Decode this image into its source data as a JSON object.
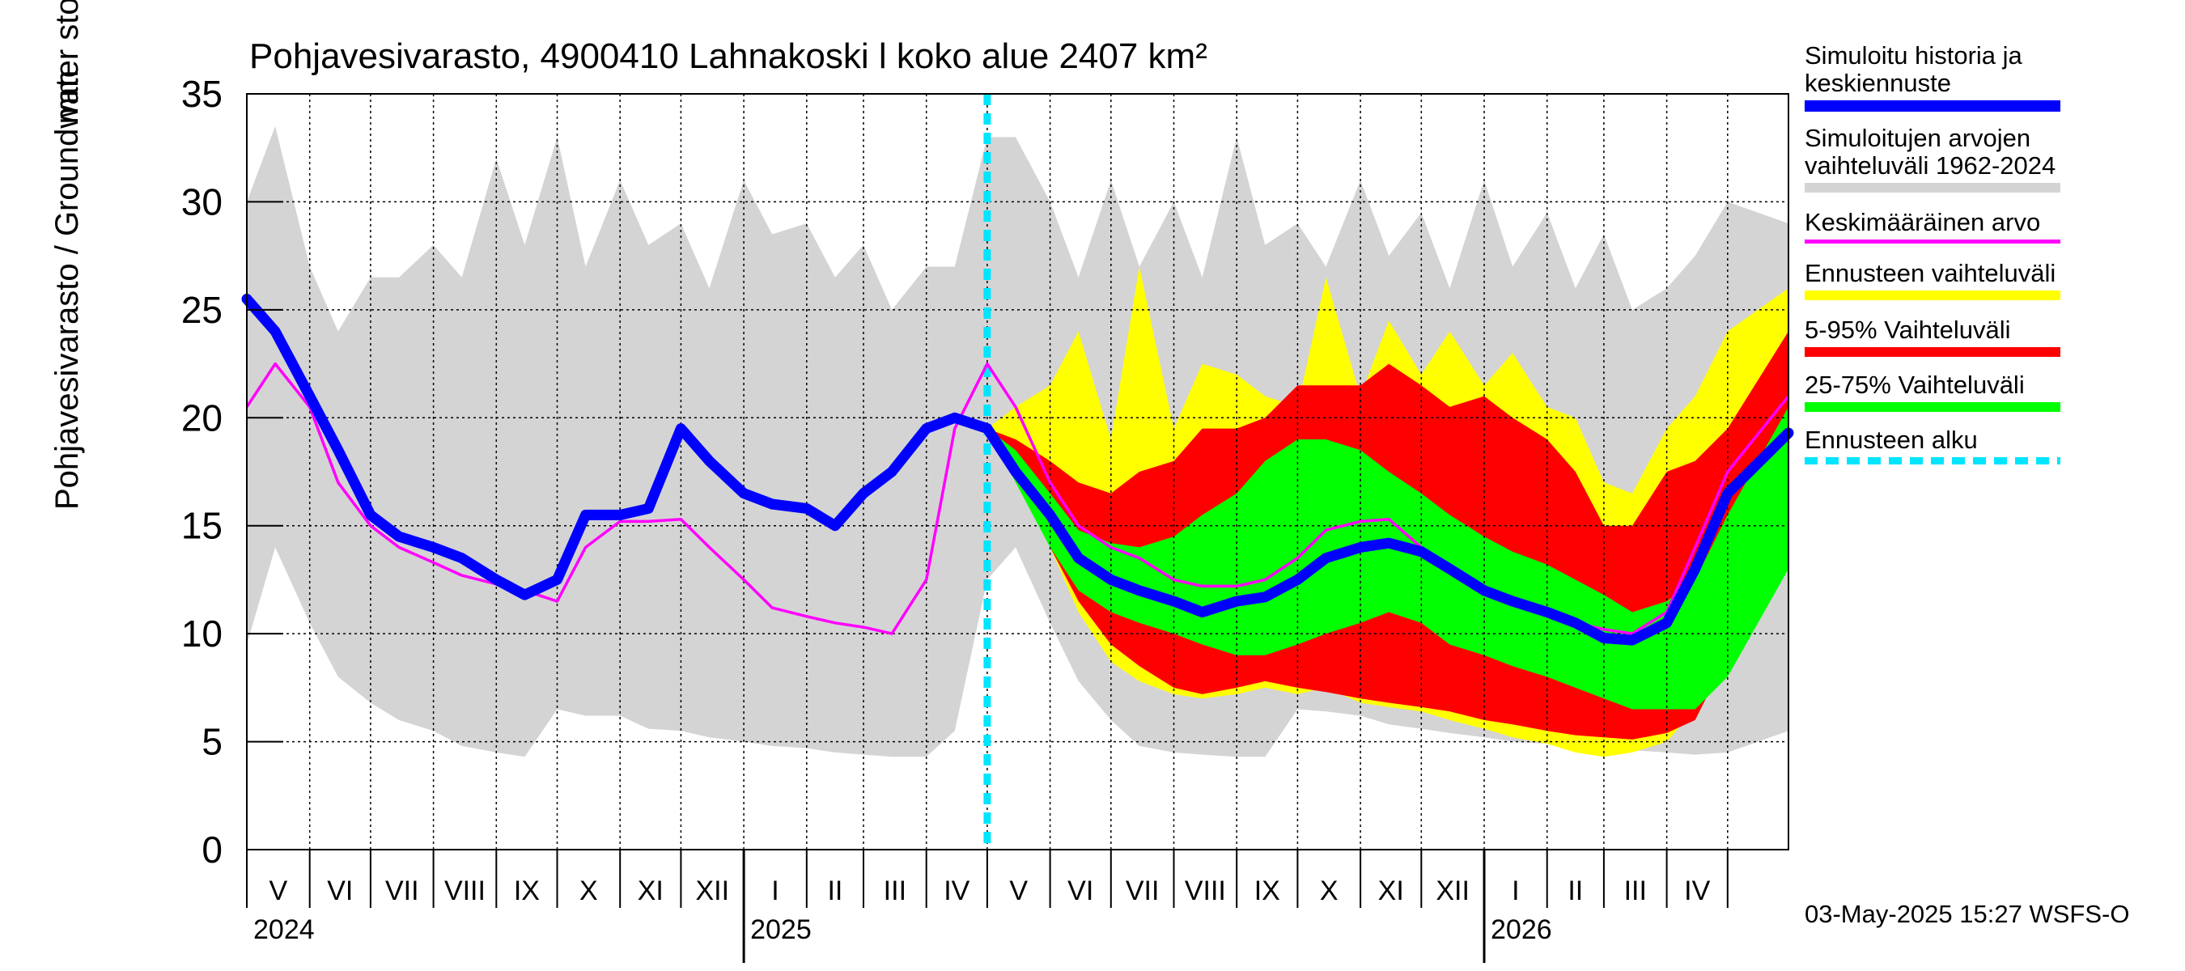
{
  "chart_data": {
    "type": "area",
    "title": "Pohjavesivarasto, 4900410 Lahnakoski l koko alue 2407 km²",
    "ylabel": "Pohjavesivarasto / Groundwater storage",
    "yunit": "mm",
    "ylim": [
      0,
      35
    ],
    "yticks": [
      0,
      5,
      10,
      15,
      20,
      25,
      30,
      35
    ],
    "xlim": [
      "2024-05-01",
      "2026-05-31"
    ],
    "grid": true,
    "legend_position": "right",
    "x": [
      "2024-05-01",
      "2024-05-15",
      "2024-06-01",
      "2024-06-15",
      "2024-07-01",
      "2024-07-15",
      "2024-08-01",
      "2024-08-15",
      "2024-09-01",
      "2024-09-15",
      "2024-10-01",
      "2024-10-15",
      "2024-11-01",
      "2024-11-15",
      "2024-12-01",
      "2024-12-15",
      "2025-01-01",
      "2025-01-15",
      "2025-02-01",
      "2025-02-15",
      "2025-03-01",
      "2025-03-15",
      "2025-04-01",
      "2025-04-15",
      "2025-05-01",
      "2025-05-15",
      "2025-06-01",
      "2025-06-15",
      "2025-07-01",
      "2025-07-15",
      "2025-08-01",
      "2025-08-15",
      "2025-09-01",
      "2025-09-15",
      "2025-10-01",
      "2025-10-15",
      "2025-11-01",
      "2025-11-15",
      "2025-12-01",
      "2025-12-15",
      "2026-01-01",
      "2026-01-15",
      "2026-02-01",
      "2026-02-15",
      "2026-03-01",
      "2026-03-15",
      "2026-04-01",
      "2026-04-15",
      "2026-05-01",
      "2026-05-31"
    ],
    "forecast_start": "2025-05-01",
    "history_end_index": 24,
    "bands": {
      "history_range": {
        "upper": [
          30,
          33.5,
          27,
          24,
          26.5,
          26.5,
          28,
          26.5,
          32,
          28,
          33,
          27,
          31,
          28,
          29,
          26,
          31,
          28.5,
          29,
          26.5,
          28,
          25,
          27,
          27,
          33,
          33,
          30,
          26.5,
          31,
          27,
          30,
          26.5,
          33,
          28,
          29,
          27,
          31,
          27.5,
          29.5,
          26,
          31,
          27,
          29.5,
          26,
          28.5,
          25,
          26,
          27.5,
          30,
          29
        ],
        "lower": [
          9.5,
          14,
          10.5,
          8,
          6.8,
          6,
          5.5,
          4.8,
          4.5,
          4.3,
          6.5,
          6.2,
          6.2,
          5.6,
          5.5,
          5.2,
          5,
          4.8,
          4.7,
          4.5,
          4.4,
          4.3,
          4.3,
          5.5,
          12.5,
          14,
          10.5,
          7.8,
          6,
          4.8,
          4.5,
          4.4,
          4.3,
          4.3,
          6.5,
          6.4,
          6.2,
          5.8,
          5.6,
          5.4,
          5.2,
          5,
          4.9,
          4.8,
          4.7,
          4.6,
          4.5,
          4.4,
          4.5,
          5.5
        ]
      },
      "forecast_range": {
        "x_start_index": 24,
        "upper": [
          19.5,
          20.5,
          21.5,
          24,
          19,
          27,
          19.5,
          22.5,
          22,
          21,
          20.5,
          26.5,
          21,
          24.5,
          22,
          24,
          21.5,
          23,
          20.5,
          20,
          17,
          16.5,
          19.5,
          21,
          24,
          26
        ],
        "lower": [
          19.5,
          17.5,
          14,
          11,
          8.7,
          7.8,
          7.2,
          7,
          7.2,
          7.5,
          7.2,
          7.5,
          6.8,
          6.6,
          6.4,
          6,
          5.6,
          5.2,
          4.9,
          4.5,
          4.3,
          4.5,
          5,
          6.5,
          10,
          15
        ]
      },
      "p5_95": {
        "x_start_index": 24,
        "upper": [
          19.5,
          19,
          18,
          17,
          16.5,
          17.5,
          18,
          19.5,
          19.5,
          20,
          21.5,
          21.5,
          21.5,
          22.5,
          21.5,
          20.5,
          21,
          20,
          19,
          17.5,
          15,
          15,
          17.5,
          18,
          19.5,
          24
        ],
        "lower": [
          19.5,
          17.5,
          14,
          11.5,
          9.5,
          8.5,
          7.5,
          7.2,
          7.5,
          7.8,
          7.5,
          7.3,
          7,
          6.8,
          6.6,
          6.4,
          6,
          5.8,
          5.5,
          5.3,
          5.2,
          5.1,
          5.4,
          6,
          9,
          14
        ]
      },
      "p25_75": {
        "x_start_index": 24,
        "upper": [
          19.5,
          18.5,
          16.5,
          14.8,
          14.2,
          14,
          14.5,
          15.5,
          16.5,
          18,
          19,
          19,
          18.5,
          17.5,
          16.5,
          15.5,
          14.5,
          13.8,
          13.2,
          12.5,
          11.8,
          11,
          11.5,
          12.5,
          15.5,
          20.5
        ],
        "lower": [
          19.5,
          17,
          14,
          12,
          11,
          10.5,
          10,
          9.5,
          9,
          9,
          9.5,
          10,
          10.5,
          11,
          10.5,
          9.5,
          9,
          8.5,
          8,
          7.5,
          7,
          6.5,
          6.5,
          6.5,
          8,
          13
        ]
      }
    },
    "series": [
      {
        "name": "Simuloitu historia ja keskiennuste",
        "color": "#0000ff",
        "values": [
          25.5,
          24,
          21,
          18.5,
          15.5,
          14.5,
          14,
          13.5,
          12.5,
          11.8,
          12.5,
          15.5,
          15.5,
          15.8,
          19.5,
          18,
          16.5,
          16,
          15.8,
          15,
          16.5,
          17.5,
          19.5,
          20,
          19.5,
          17.5,
          15.5,
          13.5,
          12.5,
          12,
          11.5,
          11,
          11.5,
          11.7,
          12.5,
          13.5,
          14,
          14.2,
          13.8,
          13,
          12,
          11.5,
          11,
          10.5,
          9.8,
          9.7,
          10.5,
          13,
          16.5,
          19.3
        ]
      },
      {
        "name": "Keskimääräinen arvo",
        "color": "#ff00ff",
        "values": [
          20.5,
          22.5,
          20.5,
          17,
          15,
          14,
          13.3,
          12.7,
          12.3,
          12,
          11.5,
          14,
          15.2,
          15.2,
          15.3,
          14,
          12.5,
          11.2,
          10.8,
          10.5,
          10.3,
          10,
          12.5,
          19.5,
          22.5,
          20.5,
          17,
          15,
          14,
          13.5,
          12.5,
          12.2,
          12.2,
          12.5,
          13.5,
          14.8,
          15.2,
          15.3,
          14,
          13,
          12,
          11.5,
          11,
          10.5,
          10.2,
          10,
          11,
          14,
          17.5,
          21
        ]
      }
    ],
    "legend": [
      {
        "label": "Simuloitu historia ja\nkeskiennuste",
        "color": "#0000ff"
      },
      {
        "label": "Simuloitujen arvojen\nvaihteluväli 1962-2024",
        "color": "#d4d4d4"
      },
      {
        "label": "Keskimääräinen arvo",
        "color": "#ff00ff"
      },
      {
        "label": "Ennusteen vaihteluväli",
        "color": "#ffff00"
      },
      {
        "label": "5-95% Vaihteluväli",
        "color": "#ff0000"
      },
      {
        "label": "25-75% Vaihteluväli",
        "color": "#00ff00"
      },
      {
        "label": "Ennusteen alku",
        "color": "#00e5ff"
      }
    ],
    "month_labels": [
      "V",
      "VI",
      "VII",
      "VIII",
      "IX",
      "X",
      "XI",
      "XII",
      "I",
      "II",
      "III",
      "IV",
      "V",
      "VI",
      "VII",
      "VIII",
      "IX",
      "X",
      "XI",
      "XII",
      "I",
      "II",
      "III",
      "IV"
    ],
    "year_labels": [
      "2024",
      "2025",
      "2026"
    ]
  },
  "timestamp": "03-May-2025 15:27 WSFS-O",
  "colors": {
    "history_range": "#d4d4d4",
    "forecast_range": "#ffff00",
    "p5_95": "#ff0000",
    "p25_75": "#00ff00",
    "forecast_start_line": "#00e5ff"
  }
}
